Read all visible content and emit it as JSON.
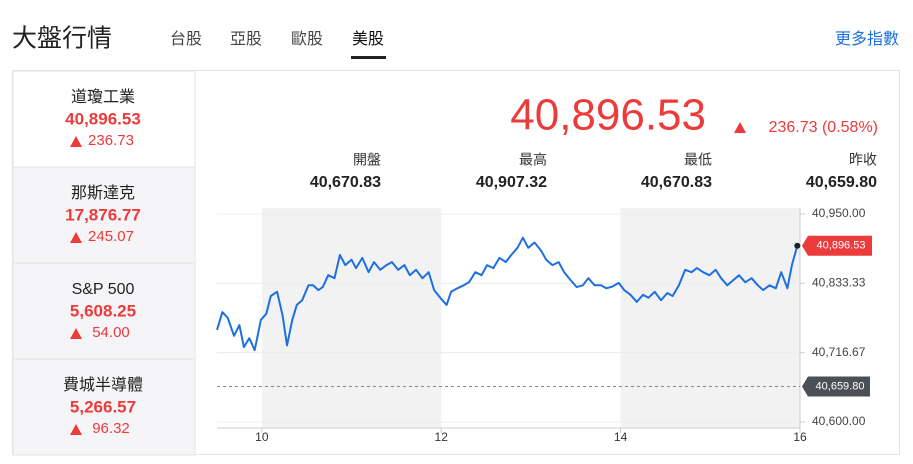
{
  "header": {
    "title": "大盤行情",
    "tabs": [
      "台股",
      "亞股",
      "歐股",
      "美股"
    ],
    "more": "更多指數"
  },
  "indices": [
    {
      "name": "道瓊工業",
      "value": "40,896.53",
      "change": "236.73"
    },
    {
      "name": "那斯達克",
      "value": "17,876.77",
      "change": "245.07"
    },
    {
      "name": "S&P 500",
      "value": "5,608.25",
      "change": "54.00"
    },
    {
      "name": "費城半導體",
      "value": "5,266.57",
      "change": "96.32"
    }
  ],
  "quote": {
    "price": "40,896.53",
    "change": "236.73 (0.58%)",
    "stats": [
      {
        "label": "開盤",
        "value": "40,670.83"
      },
      {
        "label": "最高",
        "value": "40,907.32"
      },
      {
        "label": "最低",
        "value": "40,670.83"
      },
      {
        "label": "昨收",
        "value": "40,659.80"
      }
    ]
  },
  "chart_data": {
    "type": "line",
    "color": "#1e6fe0",
    "x": [
      9.5,
      9.56,
      9.62,
      9.69,
      9.75,
      9.8,
      9.86,
      9.92,
      9.99,
      10.05,
      10.1,
      10.17,
      10.23,
      10.28,
      10.34,
      10.39,
      10.45,
      10.52,
      10.57,
      10.63,
      10.68,
      10.74,
      10.81,
      10.87,
      10.93,
      11,
      11.05,
      11.12,
      11.19,
      11.25,
      11.32,
      11.39,
      11.45,
      11.52,
      11.59,
      11.65,
      11.72,
      11.79,
      11.86,
      11.92,
      11.99,
      12.06,
      12.11,
      12.18,
      12.25,
      12.31,
      12.38,
      12.45,
      12.51,
      12.58,
      12.65,
      12.72,
      12.78,
      12.85,
      12.91,
      12.97,
      13.04,
      13.11,
      13.17,
      13.24,
      13.31,
      13.37,
      13.44,
      13.51,
      13.58,
      13.64,
      13.71,
      13.78,
      13.84,
      13.91,
      13.98,
      14.04,
      14.11,
      14.18,
      14.25,
      14.31,
      14.38,
      14.45,
      14.52,
      14.58,
      14.65,
      14.72,
      14.79,
      14.85,
      14.92,
      14.99,
      15.06,
      15.12,
      15.19,
      15.26,
      15.32,
      15.39,
      15.46,
      15.53,
      15.59,
      15.66,
      15.73,
      15.79,
      15.86,
      15.91,
      15.97
    ],
    "values": [
      40755,
      40785,
      40775,
      40745,
      40763,
      40726,
      40741,
      40721,
      40772,
      40782,
      40812,
      40819,
      40780,
      40729,
      40772,
      40797,
      40805,
      40830,
      40830,
      40822,
      40827,
      40847,
      40842,
      40881,
      40864,
      40873,
      40859,
      40876,
      40852,
      40869,
      40856,
      40864,
      40869,
      40856,
      40864,
      40847,
      40856,
      40842,
      40852,
      40822,
      40809,
      40797,
      40819,
      40825,
      40830,
      40835,
      40852,
      40847,
      40864,
      40859,
      40876,
      40869,
      40881,
      40893,
      40910,
      40893,
      40902,
      40889,
      40873,
      40864,
      40869,
      40852,
      40839,
      40827,
      40830,
      40842,
      40830,
      40830,
      40825,
      40828,
      40834,
      40822,
      40814,
      40802,
      40814,
      40809,
      40819,
      40805,
      40817,
      40812,
      40830,
      40856,
      40852,
      40859,
      40852,
      40847,
      40856,
      40842,
      40830,
      40839,
      40847,
      40835,
      40842,
      40830,
      40822,
      40830,
      40825,
      40852,
      40825,
      40864,
      40896.53
    ],
    "xlim": [
      9.5,
      16
    ],
    "xticks": [
      10,
      12,
      14,
      16
    ],
    "ylim": [
      40590,
      40960
    ],
    "yticks": [
      {
        "value": 40950,
        "label": "40,950.00"
      },
      {
        "value": 40833.33,
        "label": "40,833.33"
      },
      {
        "value": 40716.67,
        "label": "40,716.67"
      },
      {
        "value": 40600,
        "label": "40,600.00"
      }
    ],
    "shaded": [
      [
        10,
        12
      ],
      [
        14,
        16
      ]
    ],
    "reference_line": 40659.8
  }
}
